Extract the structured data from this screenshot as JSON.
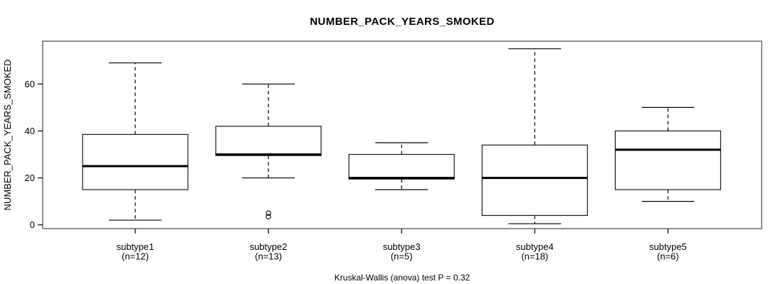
{
  "chart": {
    "title": "NUMBER_PACK_YEARS_SMOKED",
    "footer": "Kruskal-Wallis (anova) test P = 0.32",
    "y_axis_label": "NUMBER_PACK_YEARS_SMOKED"
  },
  "chart_data": {
    "type": "boxplot",
    "title": "NUMBER_PACK_YEARS_SMOKED",
    "ylabel": "NUMBER_PACK_YEARS_SMOKED",
    "xlabel": "",
    "annotation": "Kruskal-Wallis (anova) test P = 0.32",
    "grid": false,
    "ylim": [
      -2,
      78
    ],
    "yticks": [
      0,
      20,
      40,
      60
    ],
    "categories": [
      "subtype1",
      "subtype2",
      "subtype3",
      "subtype4",
      "subtype5"
    ],
    "category_sublabels": [
      "(n=12)",
      "(n=13)",
      "(n=5)",
      "(n=18)",
      "(n=6)"
    ],
    "counts": [
      12,
      13,
      5,
      18,
      6
    ],
    "series": [
      {
        "name": "subtype1",
        "n": 12,
        "whisker_low": 2,
        "q1": 15,
        "median": 25,
        "q3": 38.5,
        "whisker_high": 69,
        "outliers": []
      },
      {
        "name": "subtype2",
        "n": 13,
        "whisker_low": 20,
        "q1": 29.5,
        "median": 30,
        "q3": 42,
        "whisker_high": 60,
        "outliers": [
          5,
          3.5
        ]
      },
      {
        "name": "subtype3",
        "n": 5,
        "whisker_low": 15,
        "q1": 19.5,
        "median": 20,
        "q3": 30,
        "whisker_high": 35,
        "outliers": []
      },
      {
        "name": "subtype4",
        "n": 18,
        "whisker_low": 0.5,
        "q1": 4,
        "median": 20,
        "q3": 34,
        "whisker_high": 75,
        "outliers": []
      },
      {
        "name": "subtype5",
        "n": 6,
        "whisker_low": 10,
        "q1": 15,
        "median": 32,
        "q3": 40,
        "whisker_high": 50,
        "outliers": []
      }
    ]
  },
  "colors": {
    "background": "#ffffff",
    "frame": "#757575",
    "line": "#000000",
    "text": "#000000",
    "box_fill": "#ffffff"
  }
}
